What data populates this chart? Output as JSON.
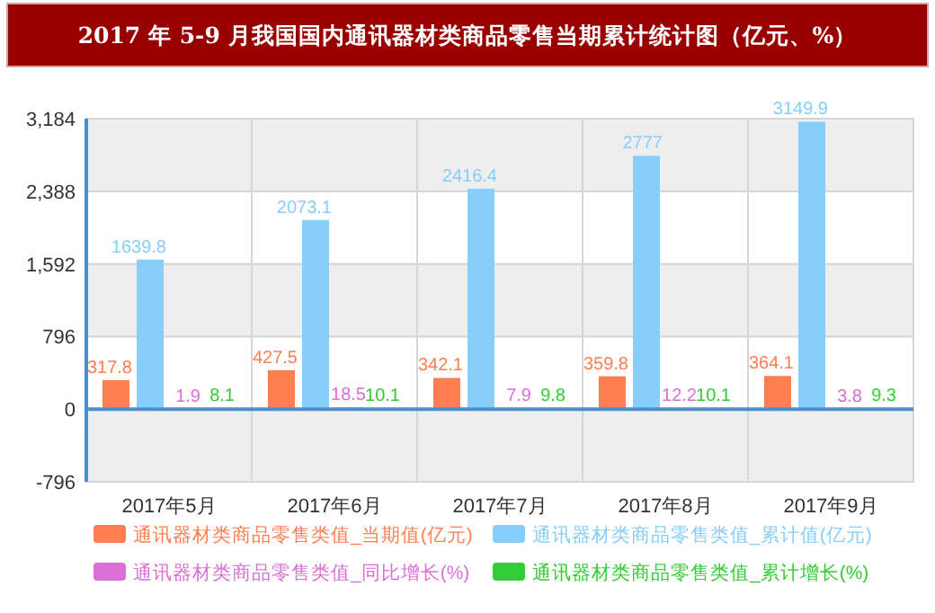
{
  "chart_data": {
    "type": "bar",
    "title": "2017 年 5-9 月我国国内通讯器材类商品零售当期累计统计图（亿元、%）",
    "categories": [
      "2017年5月",
      "2017年6月",
      "2017年7月",
      "2017年8月",
      "2017年9月"
    ],
    "series": [
      {
        "name": "通讯器材类商品零售类值_当期值(亿元)",
        "color": "#ff7f50",
        "values": [
          317.8,
          427.5,
          342.1,
          359.8,
          364.1
        ]
      },
      {
        "name": "通讯器材类商品零售类值_累计值(亿元)",
        "color": "#87cefa",
        "values": [
          1639.8,
          2073.1,
          2416.4,
          2777,
          3149.9
        ]
      },
      {
        "name": "通讯器材类商品零售类值_同比增长(%)",
        "color": "#da70d6",
        "values": [
          1.9,
          18.5,
          7.9,
          12.2,
          3.8
        ]
      },
      {
        "name": "通讯器材类商品零售类值_累计增长(%)",
        "color": "#32cd32",
        "values": [
          8.1,
          10.1,
          9.8,
          10.1,
          9.3
        ]
      }
    ],
    "ylim": [
      -796,
      3184
    ],
    "yticks": [
      {
        "value": -796,
        "label": "-796"
      },
      0,
      {
        "value": 796,
        "label": "796"
      },
      {
        "value": 1592,
        "label": "1,592"
      },
      {
        "value": 2388,
        "label": "2,388"
      },
      {
        "value": 3184,
        "label": "3,184"
      }
    ],
    "ref_lines": [
      {
        "axis": "y",
        "value": 0,
        "color": "#4a8fd0"
      }
    ],
    "grid": true,
    "data_labels": true,
    "legend": "bottom"
  }
}
